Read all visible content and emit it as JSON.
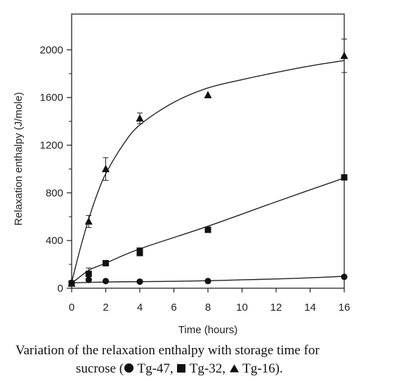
{
  "chart_data": {
    "type": "scatter",
    "xlabel": "Time (hours)",
    "ylabel": "Relaxation enthalpy (J/mole)",
    "x_ticks": [
      {
        "value": 0,
        "label": "0"
      },
      {
        "value": 1,
        "label": "2"
      },
      {
        "value": 2,
        "label": "4"
      },
      {
        "value": 3,
        "label": "6"
      },
      {
        "value": 4,
        "label": "8"
      },
      {
        "value": 5,
        "label": "10"
      },
      {
        "value": 6,
        "label": "12"
      },
      {
        "value": 7,
        "label": "14"
      },
      {
        "value": 8,
        "label": "16"
      }
    ],
    "y_ticks": [
      0,
      400,
      800,
      1200,
      1600,
      2000
    ],
    "xlim": [
      0,
      8
    ],
    "ylim": [
      0,
      2300
    ],
    "grid": false,
    "series": [
      {
        "marker": "circle",
        "points": [
          {
            "x": 0,
            "y": 45
          },
          {
            "x": 0.5,
            "y": 70
          },
          {
            "x": 1,
            "y": 60
          },
          {
            "x": 2,
            "y": 55
          },
          {
            "x": 4,
            "y": 60
          },
          {
            "x": 8,
            "y": 95
          }
        ],
        "fit": [
          [
            0,
            45
          ],
          [
            1,
            52
          ],
          [
            2,
            55
          ],
          [
            3,
            58
          ],
          [
            4,
            63
          ],
          [
            5,
            70
          ],
          [
            6,
            78
          ],
          [
            7,
            87
          ],
          [
            8,
            100
          ]
        ]
      },
      {
        "marker": "square",
        "points": [
          {
            "x": 0,
            "y": 40
          },
          {
            "x": 0.5,
            "y": 120
          },
          {
            "x": 1,
            "y": 210
          },
          {
            "x": 2,
            "y": 295
          },
          {
            "x": 2,
            "y": 315
          },
          {
            "x": 4,
            "y": 490
          },
          {
            "x": 8,
            "y": 930
          }
        ],
        "errors": [
          {
            "x": 0.5,
            "y": 120,
            "err": 50
          }
        ],
        "fit": [
          [
            0,
            40
          ],
          [
            0.5,
            150
          ],
          [
            1,
            210
          ],
          [
            2,
            330
          ],
          [
            4,
            520
          ],
          [
            6,
            725
          ],
          [
            8,
            925
          ]
        ]
      },
      {
        "marker": "triangle",
        "points": [
          {
            "x": 0,
            "y": 40
          },
          {
            "x": 0.5,
            "y": 560
          },
          {
            "x": 1,
            "y": 1000
          },
          {
            "x": 2,
            "y": 1425
          },
          {
            "x": 4,
            "y": 1620
          },
          {
            "x": 8,
            "y": 1950
          }
        ],
        "errors": [
          {
            "x": 0.5,
            "y": 560,
            "err": 50
          },
          {
            "x": 1,
            "y": 1000,
            "err": 95
          },
          {
            "x": 2,
            "y": 1425,
            "err": 45
          },
          {
            "x": 8,
            "y": 1950,
            "err": 140
          }
        ],
        "fit": [
          [
            0,
            50
          ],
          [
            0.25,
            330
          ],
          [
            0.5,
            580
          ],
          [
            0.75,
            790
          ],
          [
            1,
            960
          ],
          [
            1.5,
            1200
          ],
          [
            2,
            1370
          ],
          [
            3,
            1560
          ],
          [
            4,
            1680
          ],
          [
            5,
            1750
          ],
          [
            6,
            1810
          ],
          [
            7,
            1865
          ],
          [
            8,
            1910
          ]
        ]
      }
    ]
  },
  "caption": {
    "line1": "Variation of the relaxation enthalpy with storage time for",
    "line2_prefix": "sucrose (",
    "item1": " Tg-47, ",
    "item2": " Tg-32, ",
    "item3": " Tg-16)."
  }
}
